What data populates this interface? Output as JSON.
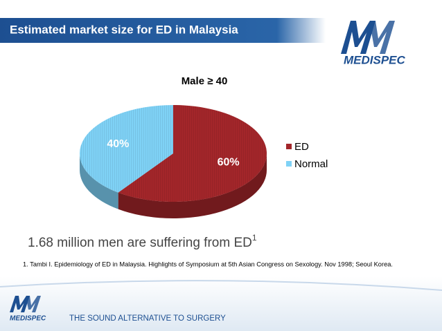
{
  "header": {
    "title": "Estimated market size for ED in Malaysia",
    "logo": "MEDISPEC"
  },
  "chart_data": {
    "type": "pie",
    "title": "Male ≥ 40",
    "categories": [
      "ED",
      "Normal"
    ],
    "values": [
      60,
      40
    ],
    "value_labels": [
      "60%",
      "40%"
    ],
    "colors": [
      "#a3262a",
      "#7fd2f6"
    ],
    "legend": "right"
  },
  "statement": {
    "text": "1.68 million men are suffering from ED",
    "superscript": "1"
  },
  "footnote": "1. Tambi I. Epidemiology of ED in Malaysia. Highlights of Symposium at 5th Asian Congress on Sexology. Nov 1998; Seoul Korea.",
  "footer": {
    "logo": "MEDISPEC",
    "tagline": "THE SOUND ALTERNATIVE TO SURGERY"
  }
}
